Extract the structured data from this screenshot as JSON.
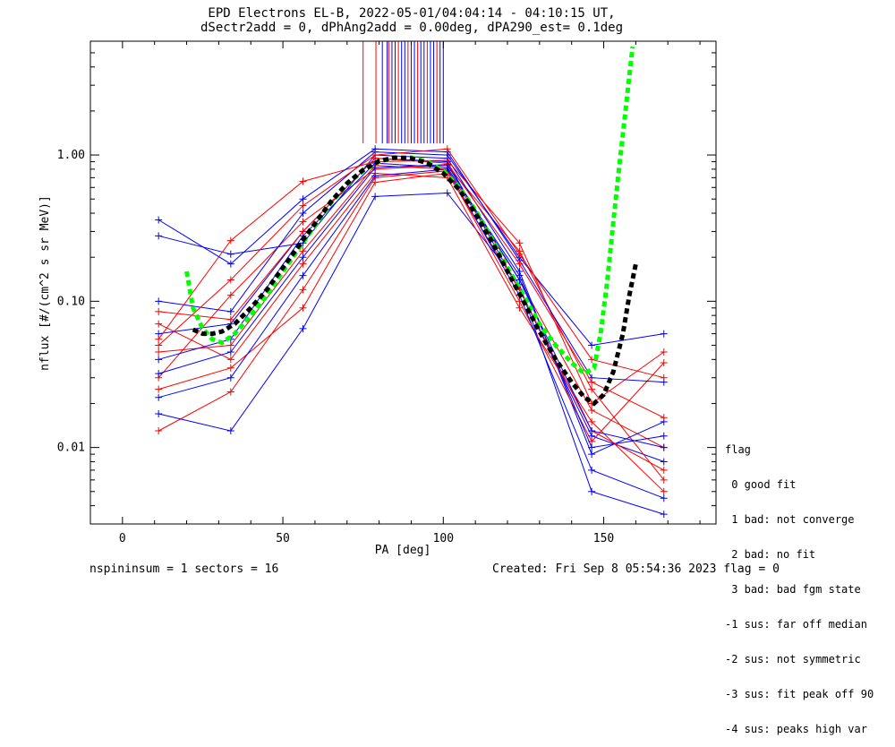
{
  "chart_data": {
    "type": "line",
    "title": "EPD Electrons EL-B, 2022-05-01/04:04:14 - 04:10:15 UT,",
    "subtitle": "dSectr2add = 0, dPhAng2add = 0.00deg, dPA290_est=   0.1deg",
    "xlabel": "PA [deg]",
    "ylabel": "nflux [#/(cm^2 s sr MeV)]",
    "xlim": [
      -10,
      185
    ],
    "ylim": [
      0.003,
      6.0
    ],
    "yscale": "log",
    "x_ticks": [
      0,
      50,
      100,
      150
    ],
    "x_tick_labels": [
      "0",
      "50",
      "100",
      "150"
    ],
    "y_ticks": [
      0.01,
      0.1,
      1.0
    ],
    "y_tick_labels": [
      "0.01",
      "0.10",
      "1.00"
    ],
    "pa_bins": [
      11.25,
      33.75,
      56.25,
      78.75,
      101.25,
      123.75,
      146.25,
      168.75
    ],
    "series": [
      {
        "color": "#ff0000",
        "values": [
          0.045,
          0.05,
          0.22,
          0.85,
          0.8,
          0.14,
          0.018,
          0.01
        ]
      },
      {
        "color": "#0000ff",
        "values": [
          0.06,
          0.07,
          0.3,
          0.95,
          0.9,
          0.12,
          0.012,
          0.008
        ]
      },
      {
        "color": "#ff0000",
        "values": [
          0.03,
          0.11,
          0.35,
          0.8,
          0.85,
          0.22,
          0.025,
          0.006
        ]
      },
      {
        "color": "#0000ff",
        "values": [
          0.28,
          0.21,
          0.25,
          1.0,
          0.95,
          0.16,
          0.009,
          0.015
        ]
      },
      {
        "color": "#ff0000",
        "values": [
          0.013,
          0.024,
          0.12,
          0.7,
          0.78,
          0.1,
          0.011,
          0.038
        ]
      },
      {
        "color": "#0000ff",
        "values": [
          0.1,
          0.085,
          0.4,
          1.05,
          1.0,
          0.2,
          0.05,
          0.06
        ]
      },
      {
        "color": "#ff0000",
        "values": [
          0.055,
          0.26,
          0.66,
          0.9,
          0.92,
          0.25,
          0.02,
          0.045
        ]
      },
      {
        "color": "#0000ff",
        "values": [
          0.017,
          0.013,
          0.065,
          0.52,
          0.55,
          0.13,
          0.005,
          0.0035
        ]
      },
      {
        "color": "#ff0000",
        "values": [
          0.07,
          0.04,
          0.18,
          0.75,
          0.7,
          0.09,
          0.015,
          0.005
        ]
      },
      {
        "color": "#0000ff",
        "values": [
          0.04,
          0.055,
          0.28,
          0.88,
          0.82,
          0.15,
          0.01,
          0.012
        ]
      },
      {
        "color": "#ff0000",
        "values": [
          0.025,
          0.035,
          0.09,
          0.65,
          0.75,
          0.12,
          0.013,
          0.007
        ]
      },
      {
        "color": "#0000ff",
        "values": [
          0.36,
          0.18,
          0.5,
          1.1,
          1.05,
          0.19,
          0.03,
          0.028
        ]
      },
      {
        "color": "#ff0000",
        "values": [
          0.085,
          0.075,
          0.3,
          0.95,
          0.88,
          0.18,
          0.028,
          0.016
        ]
      },
      {
        "color": "#0000ff",
        "values": [
          0.022,
          0.03,
          0.15,
          0.72,
          0.8,
          0.11,
          0.007,
          0.0045
        ]
      },
      {
        "color": "#ff0000",
        "values": [
          0.05,
          0.14,
          0.45,
          1.0,
          1.1,
          0.21,
          0.04,
          0.03
        ]
      },
      {
        "color": "#0000ff",
        "values": [
          0.032,
          0.045,
          0.2,
          0.82,
          0.86,
          0.14,
          0.013,
          0.01
        ]
      }
    ],
    "spike_groups": [
      {
        "color": "#ff0000",
        "x": [
          75,
          79,
          83,
          86,
          89,
          92,
          95,
          98
        ]
      },
      {
        "color": "#0000ff",
        "x": [
          81,
          82.5,
          84,
          85,
          87,
          88,
          90,
          91,
          93,
          94,
          96,
          97,
          99,
          100
        ]
      }
    ],
    "fits": [
      {
        "color": "#00ff00",
        "pa": [
          20,
          22,
          25,
          28,
          31,
          35,
          40,
          45,
          50,
          55,
          60,
          65,
          70,
          75,
          80,
          85,
          90,
          95,
          100,
          105,
          110,
          115,
          120,
          125,
          130,
          135,
          140,
          144,
          147,
          149,
          151,
          153,
          155,
          157,
          159
        ],
        "values": [
          0.16,
          0.09,
          0.065,
          0.055,
          0.052,
          0.06,
          0.08,
          0.11,
          0.16,
          0.23,
          0.33,
          0.47,
          0.63,
          0.78,
          0.9,
          0.96,
          0.96,
          0.9,
          0.78,
          0.6,
          0.42,
          0.27,
          0.17,
          0.11,
          0.07,
          0.05,
          0.038,
          0.032,
          0.035,
          0.06,
          0.13,
          0.35,
          0.9,
          2.2,
          5.5
        ]
      },
      {
        "color": "#000000",
        "pa": [
          22,
          25,
          28,
          31,
          35,
          40,
          45,
          50,
          55,
          60,
          65,
          70,
          75,
          80,
          85,
          90,
          95,
          100,
          105,
          110,
          115,
          120,
          125,
          130,
          135,
          140,
          144,
          147,
          150,
          153,
          156,
          158,
          160
        ],
        "values": [
          0.064,
          0.06,
          0.06,
          0.062,
          0.07,
          0.09,
          0.12,
          0.17,
          0.24,
          0.34,
          0.48,
          0.64,
          0.79,
          0.91,
          0.96,
          0.95,
          0.88,
          0.75,
          0.58,
          0.4,
          0.26,
          0.16,
          0.1,
          0.062,
          0.04,
          0.028,
          0.022,
          0.02,
          0.023,
          0.033,
          0.06,
          0.11,
          0.18
        ]
      }
    ]
  },
  "legend": {
    "title": "flag",
    "lines": [
      " 0 good fit",
      " 1 bad: not converge",
      " 2 bad: no fit",
      " 3 bad: bad fgm state",
      "-1 sus: far off median",
      "-2 sus: not symmetric",
      "-3 sus: fit peak off 90",
      "-4 sus: peaks high var"
    ]
  },
  "footer": {
    "left": "nspininsum =  1  sectors = 16",
    "right": "Created: Fri Sep  8 05:54:36 2023   flag = 0"
  }
}
